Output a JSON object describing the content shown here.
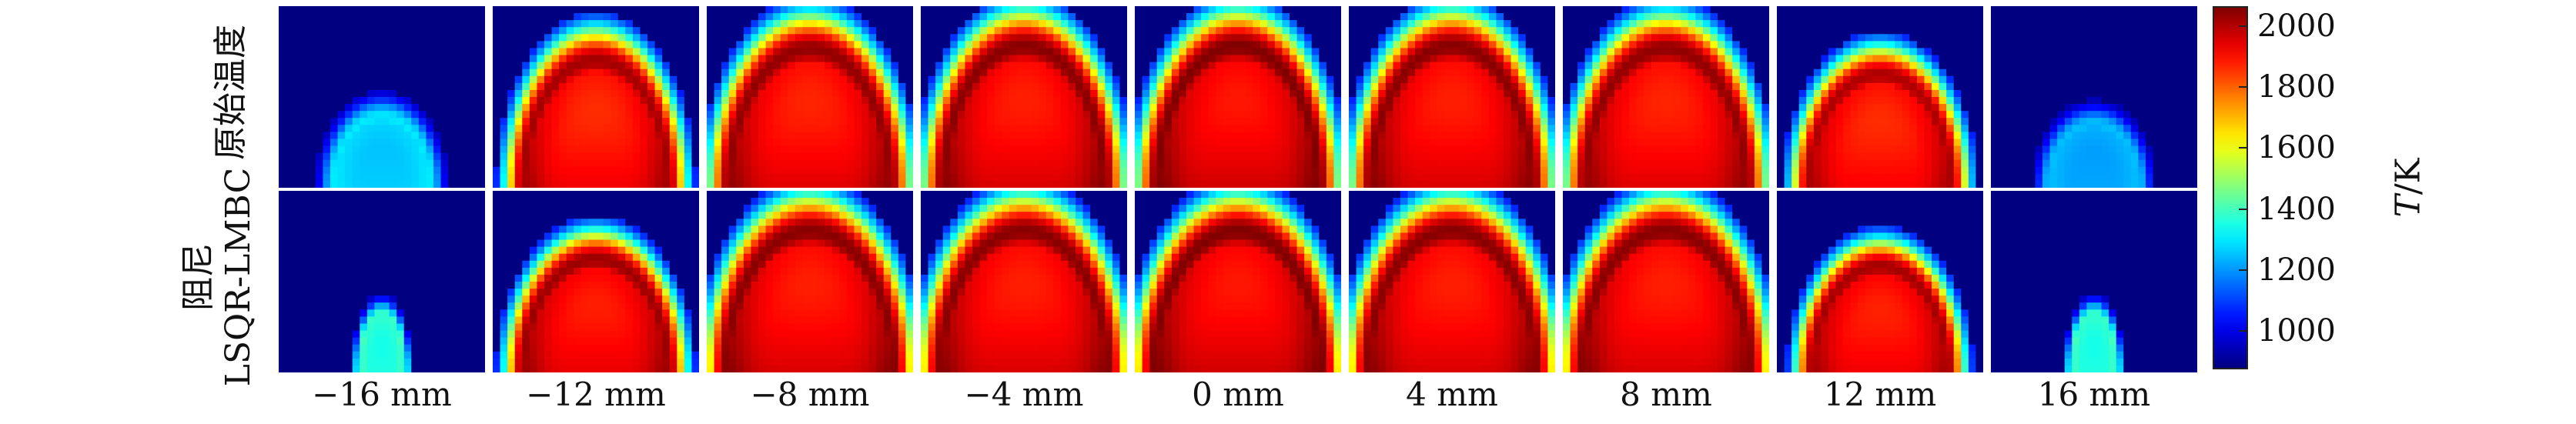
{
  "figure": {
    "rows": [
      {
        "label": "原始温度"
      },
      {
        "label_lines": [
          "阻尼",
          "LSQR-LMBC"
        ]
      }
    ],
    "columns": [
      "−16 mm",
      "−12 mm",
      "−8 mm",
      "−4 mm",
      "0 mm",
      "4 mm",
      "8 mm",
      "12 mm",
      "16 mm"
    ],
    "colorbar": {
      "label_italic": "T",
      "label_rest": "/K",
      "ticks": [
        "1000",
        "1200",
        "1400",
        "1600",
        "1800",
        "2000"
      ],
      "range": [
        880,
        2060
      ],
      "colormap": "jet"
    }
  },
  "chart_data": {
    "type": "heatmap",
    "title": "",
    "colormap": "jet",
    "value_range": [
      880,
      2060
    ],
    "colorbar_ticks": [
      1000,
      1200,
      1400,
      1600,
      1800,
      2000
    ],
    "colorbar_label": "T/K",
    "row_labels": [
      "原始温度",
      "阻尼 LSQR-LMBC"
    ],
    "column_labels": [
      "−16 mm",
      "−12 mm",
      "−8 mm",
      "−4 mm",
      "0 mm",
      "4 mm",
      "8 mm",
      "12 mm",
      "16 mm"
    ],
    "panels": [
      [
        {
          "peak_T": 1300,
          "flame_height": 0.5,
          "half_width": 0.3
        },
        {
          "peak_T": 2020,
          "flame_height": 0.9,
          "half_width": 0.45
        },
        {
          "peak_T": 2040,
          "flame_height": 0.98,
          "half_width": 0.5
        },
        {
          "peak_T": 2050,
          "flame_height": 1.0,
          "half_width": 0.5
        },
        {
          "peak_T": 2060,
          "flame_height": 1.0,
          "half_width": 0.5
        },
        {
          "peak_T": 2050,
          "flame_height": 1.0,
          "half_width": 0.5
        },
        {
          "peak_T": 2040,
          "flame_height": 0.98,
          "half_width": 0.5
        },
        {
          "peak_T": 2010,
          "flame_height": 0.8,
          "half_width": 0.44
        },
        {
          "peak_T": 1250,
          "flame_height": 0.45,
          "half_width": 0.28
        }
      ],
      [
        {
          "peak_T": 1400,
          "flame_height": 0.4,
          "half_width": 0.14
        },
        {
          "peak_T": 2030,
          "flame_height": 0.8,
          "half_width": 0.45
        },
        {
          "peak_T": 2050,
          "flame_height": 1.0,
          "half_width": 0.52
        },
        {
          "peak_T": 2050,
          "flame_height": 1.0,
          "half_width": 0.52
        },
        {
          "peak_T": 2060,
          "flame_height": 1.0,
          "half_width": 0.52
        },
        {
          "peak_T": 2050,
          "flame_height": 1.0,
          "half_width": 0.52
        },
        {
          "peak_T": 2050,
          "flame_height": 1.0,
          "half_width": 0.52
        },
        {
          "peak_T": 2020,
          "flame_height": 0.75,
          "half_width": 0.42
        },
        {
          "peak_T": 1400,
          "flame_height": 0.4,
          "half_width": 0.14
        }
      ]
    ]
  }
}
